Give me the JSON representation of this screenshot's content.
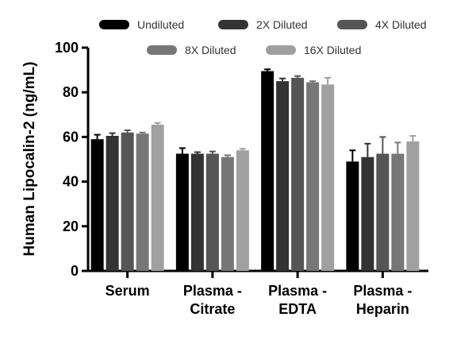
{
  "chart_data": {
    "type": "bar",
    "title": "",
    "xlabel": "",
    "ylabel": "Human Lipocalin-2 (ng/mL)",
    "ylim": [
      0,
      100
    ],
    "yticks": [
      0,
      20,
      40,
      60,
      80,
      100
    ],
    "grid": false,
    "legend_position": "top",
    "categories": [
      [
        "Serum"
      ],
      [
        "Plasma -",
        "Citrate"
      ],
      [
        "Plasma -",
        "EDTA"
      ],
      [
        "Plasma -",
        "Heparin"
      ]
    ],
    "series": [
      {
        "name": "Undiluted",
        "color": "#000000",
        "values": [
          59,
          52.5,
          89.5,
          49
        ],
        "errors": [
          2,
          2.5,
          0.8,
          5
        ]
      },
      {
        "name": "2X Diluted",
        "color": "#333333",
        "values": [
          60.5,
          52.5,
          85,
          51
        ],
        "errors": [
          1.2,
          0.7,
          1.2,
          6
        ]
      },
      {
        "name": "4X Diluted",
        "color": "#555555",
        "values": [
          62,
          52.5,
          86.5,
          52.5
        ],
        "errors": [
          1,
          1,
          0.8,
          7.5
        ]
      },
      {
        "name": "8X Diluted",
        "color": "#777777",
        "values": [
          61.5,
          51,
          84.5,
          52.5
        ],
        "errors": [
          0.5,
          0.8,
          0.5,
          5
        ]
      },
      {
        "name": "16X Diluted",
        "color": "#a0a0a0",
        "values": [
          65.5,
          54,
          83.5,
          58
        ],
        "errors": [
          0.8,
          0.7,
          3,
          2.5
        ]
      }
    ]
  }
}
